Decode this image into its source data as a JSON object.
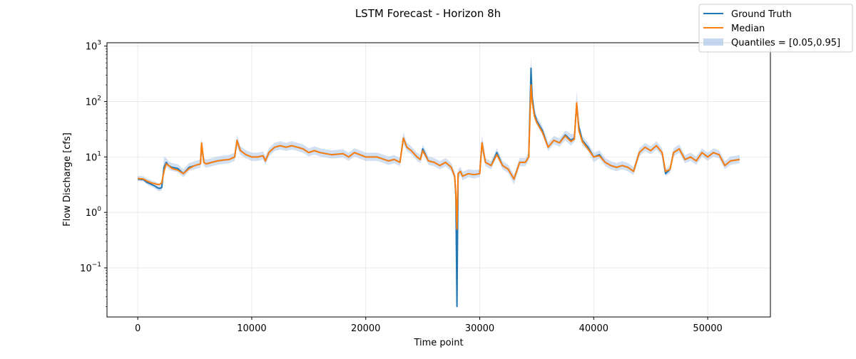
{
  "chart_data": {
    "type": "line",
    "title": "LSTM Forecast - Horizon 8h",
    "xlabel": "Time point",
    "ylabel": "Flow Discharge [cfs]",
    "yscale": "log",
    "xlim": [
      -2700,
      55500
    ],
    "ylim": [
      0.013,
      1150
    ],
    "grid": true,
    "legend_position": "top-right",
    "x_ticks": [
      {
        "value": 0,
        "label": "0"
      },
      {
        "value": 10000,
        "label": "10000"
      },
      {
        "value": 20000,
        "label": "20000"
      },
      {
        "value": 30000,
        "label": "30000"
      },
      {
        "value": 40000,
        "label": "40000"
      },
      {
        "value": 50000,
        "label": "50000"
      }
    ],
    "y_ticks": [
      {
        "value": 0.1,
        "base": "10",
        "exp": "−1"
      },
      {
        "value": 1,
        "base": "10",
        "exp": "0"
      },
      {
        "value": 10,
        "base": "10",
        "exp": "1"
      },
      {
        "value": 100,
        "base": "10",
        "exp": "2"
      },
      {
        "value": 1000,
        "base": "10",
        "exp": "3"
      }
    ],
    "colors": {
      "ground_truth": "#1f77b4",
      "median": "#ff7f0e",
      "quantile_band": "#aec7e8",
      "grid": "#e6e6e6"
    },
    "series": [
      {
        "name": "Ground Truth",
        "x": [
          0,
          500,
          800,
          1200,
          1500,
          1700,
          1900,
          2100,
          2300,
          2500,
          2700,
          3000,
          3500,
          4000,
          4500,
          5000,
          5500,
          5600,
          5800,
          6000,
          6500,
          7000,
          7500,
          8000,
          8500,
          8700,
          9000,
          9500,
          10000,
          10500,
          11000,
          11200,
          11500,
          12000,
          12500,
          13000,
          13500,
          14000,
          14500,
          15000,
          15500,
          16000,
          17000,
          18000,
          18500,
          19000,
          20000,
          21000,
          22000,
          22500,
          23000,
          23300,
          23600,
          24000,
          24500,
          24800,
          25000,
          25500,
          26000,
          26500,
          27000,
          27500,
          27800,
          27900,
          28000,
          28100,
          28300,
          28500,
          29000,
          29500,
          30000,
          30200,
          30500,
          31000,
          31500,
          32000,
          32500,
          33000,
          33500,
          34000,
          34300,
          34500,
          34600,
          34800,
          35000,
          35500,
          36000,
          36500,
          37000,
          37500,
          38000,
          38300,
          38500,
          38700,
          39000,
          39500,
          40000,
          40500,
          41000,
          41500,
          42000,
          42500,
          43000,
          43500,
          44000,
          44500,
          45000,
          45500,
          46000,
          46300,
          46700,
          47000,
          47500,
          48000,
          48500,
          49000,
          49500,
          50000,
          50500,
          51000,
          51500,
          52000,
          52800
        ],
        "y": [
          4.0,
          3.9,
          3.5,
          3.2,
          3.0,
          2.8,
          2.7,
          2.8,
          6.5,
          8.0,
          7.0,
          6.5,
          6.2,
          5.0,
          6.5,
          7.0,
          7.5,
          17,
          8.0,
          7.5,
          8.0,
          8.5,
          8.8,
          9.0,
          10,
          20,
          13,
          11,
          10,
          10,
          10.5,
          8.5,
          12,
          15,
          16,
          15,
          16,
          15,
          14,
          12,
          13,
          12,
          11,
          11.5,
          10,
          12,
          10,
          10,
          8.5,
          9.0,
          8.0,
          22,
          15,
          13,
          10,
          9.0,
          14,
          8.5,
          8.0,
          7.0,
          8.0,
          6.5,
          4.5,
          2.0,
          0.02,
          5.0,
          5.5,
          4.5,
          5.0,
          4.8,
          5.0,
          18,
          8.0,
          7.0,
          12,
          7.0,
          6.0,
          4.0,
          8.0,
          8.0,
          10,
          400,
          120,
          60,
          45,
          30,
          15,
          20,
          18,
          25,
          20,
          22,
          90,
          35,
          20,
          15,
          10,
          11,
          8.0,
          7.0,
          6.5,
          7.0,
          6.5,
          5.5,
          12,
          15,
          13,
          16,
          12,
          5.0,
          6.0,
          12,
          14,
          9.0,
          10,
          8.5,
          12,
          10,
          12,
          11,
          7.0,
          8.5,
          9.0
        ],
        "band_low": [
          3.7,
          3.6,
          3.2,
          2.9,
          2.7,
          2.5,
          2.4,
          2.5,
          5.5,
          6.8,
          6.0,
          5.6,
          5.3,
          4.3,
          5.6,
          6.0,
          6.4,
          12,
          6.8,
          6.4,
          6.8,
          7.2,
          7.5,
          7.7,
          8.5,
          15,
          11,
          9.4,
          8.5,
          8.5,
          8.9,
          7.2,
          10.2,
          12.8,
          13.6,
          12.8,
          13.6,
          12.8,
          11.9,
          10.2,
          11.1,
          10.2,
          9.4,
          9.8,
          8.5,
          10.2,
          8.5,
          8.5,
          7.2,
          7.7,
          6.8,
          17,
          12.8,
          11.1,
          8.5,
          7.7,
          11.9,
          7.2,
          6.8,
          6.0,
          6.8,
          5.5,
          3.8,
          1.0,
          0.3,
          4.0,
          4.7,
          3.8,
          4.3,
          4.1,
          4.3,
          13,
          6.8,
          6.0,
          10.2,
          6.0,
          5.1,
          3.2,
          6.8,
          6.8,
          8.5,
          140,
          90,
          48,
          38,
          25,
          12.8,
          17,
          15.3,
          20,
          16,
          18.7,
          60,
          29.8,
          16,
          12.8,
          8.0,
          9.4,
          6.8,
          6.0,
          5.5,
          6.0,
          5.5,
          4.7,
          10.2,
          12.8,
          11.1,
          13.6,
          10.2,
          4.5,
          5.1,
          10.2,
          11.9,
          7.7,
          8.5,
          7.2,
          10.2,
          8.5,
          10.2,
          9.4,
          6.0,
          7.2,
          7.7
        ],
        "band_high": [
          4.6,
          4.5,
          4.1,
          3.8,
          3.6,
          3.4,
          3.3,
          3.4,
          10,
          9.6,
          8.4,
          7.8,
          7.4,
          6.0,
          7.8,
          8.4,
          9.0,
          22,
          9.6,
          9.0,
          9.6,
          10.2,
          10.6,
          10.8,
          12,
          25,
          15.6,
          13.2,
          12,
          12,
          12.6,
          10.2,
          14.4,
          18,
          19.2,
          18,
          19.2,
          18,
          16.8,
          14.4,
          15.6,
          14.4,
          13.2,
          13.8,
          12,
          14.4,
          12,
          12,
          10.2,
          10.8,
          9.6,
          28,
          18,
          15.6,
          12,
          10.8,
          16.8,
          10.2,
          9.6,
          8.4,
          9.6,
          7.8,
          5.4,
          3.0,
          1.5,
          6.0,
          6.6,
          5.4,
          6.0,
          5.8,
          6.0,
          25,
          9.6,
          8.4,
          14.4,
          8.4,
          7.2,
          4.8,
          9.6,
          9.6,
          12,
          700,
          200,
          75,
          55,
          36,
          18,
          24,
          21.6,
          30,
          26,
          26.4,
          160,
          42,
          24,
          18,
          12,
          13.2,
          9.6,
          8.4,
          7.8,
          8.4,
          7.8,
          6.6,
          14.4,
          18,
          15.6,
          19.2,
          14.4,
          6.0,
          7.2,
          14.4,
          16.8,
          10.8,
          12,
          10.2,
          14.4,
          12,
          14.4,
          13.2,
          8.4,
          10.2,
          10.8
        ]
      },
      {
        "name": "Median",
        "x": [
          0,
          500,
          800,
          1200,
          1500,
          1700,
          1900,
          2100,
          2300,
          2500,
          2700,
          3000,
          3500,
          4000,
          4500,
          5000,
          5500,
          5600,
          5800,
          6000,
          6500,
          7000,
          7500,
          8000,
          8500,
          8700,
          9000,
          9500,
          10000,
          10500,
          11000,
          11200,
          11500,
          12000,
          12500,
          13000,
          13500,
          14000,
          14500,
          15000,
          15500,
          16000,
          17000,
          18000,
          18500,
          19000,
          20000,
          21000,
          22000,
          22500,
          23000,
          23300,
          23600,
          24000,
          24500,
          24800,
          25000,
          25500,
          26000,
          26500,
          27000,
          27500,
          27800,
          27900,
          28000,
          28100,
          28300,
          28500,
          29000,
          29500,
          30000,
          30200,
          30500,
          31000,
          31500,
          32000,
          32500,
          33000,
          33500,
          34000,
          34300,
          34500,
          34600,
          34800,
          35000,
          35500,
          36000,
          36500,
          37000,
          37500,
          38000,
          38300,
          38500,
          38700,
          39000,
          39500,
          40000,
          40500,
          41000,
          41500,
          42000,
          42500,
          43000,
          43500,
          44000,
          44500,
          45000,
          45500,
          46000,
          46300,
          46700,
          47000,
          47500,
          48000,
          48500,
          49000,
          49500,
          50000,
          50500,
          51000,
          51500,
          52000,
          52800
        ],
        "y": [
          4.1,
          4.0,
          3.7,
          3.4,
          3.3,
          3.2,
          3.2,
          3.4,
          5.5,
          7.5,
          7.0,
          6.2,
          5.8,
          5.0,
          6.2,
          7.0,
          7.5,
          18,
          8.0,
          7.5,
          8.0,
          8.5,
          8.8,
          9.0,
          10,
          20,
          13,
          11,
          10,
          10,
          10.5,
          8.5,
          12,
          15,
          16,
          15,
          16,
          15,
          14,
          12,
          13,
          12,
          11,
          11.5,
          10,
          12,
          10,
          10,
          8.5,
          9.0,
          8.0,
          22,
          15,
          13,
          10,
          9.0,
          13,
          8.5,
          8.0,
          7.0,
          8.0,
          6.5,
          4.5,
          2.2,
          0.5,
          5.0,
          5.5,
          4.5,
          5.0,
          4.8,
          5.0,
          18,
          8.0,
          7.0,
          11,
          7.0,
          6.0,
          4.0,
          8.0,
          8.0,
          10,
          200,
          100,
          55,
          42,
          28,
          15,
          20,
          18,
          24,
          19,
          21,
          95,
          30,
          19,
          14,
          10,
          10.5,
          8.0,
          7.0,
          6.5,
          7.0,
          6.5,
          5.5,
          12,
          15,
          13,
          16,
          12,
          5.5,
          6.0,
          12,
          14,
          9.0,
          10,
          8.5,
          12,
          10,
          12,
          11,
          7.0,
          8.5,
          9.0
        ]
      }
    ],
    "legend": [
      {
        "label": "Ground Truth",
        "kind": "line",
        "color": "#1f77b4"
      },
      {
        "label": "Median",
        "kind": "line",
        "color": "#ff7f0e"
      },
      {
        "label": "Quantiles = [0.05,0.95]",
        "kind": "band",
        "color": "#aec7e8"
      }
    ]
  }
}
